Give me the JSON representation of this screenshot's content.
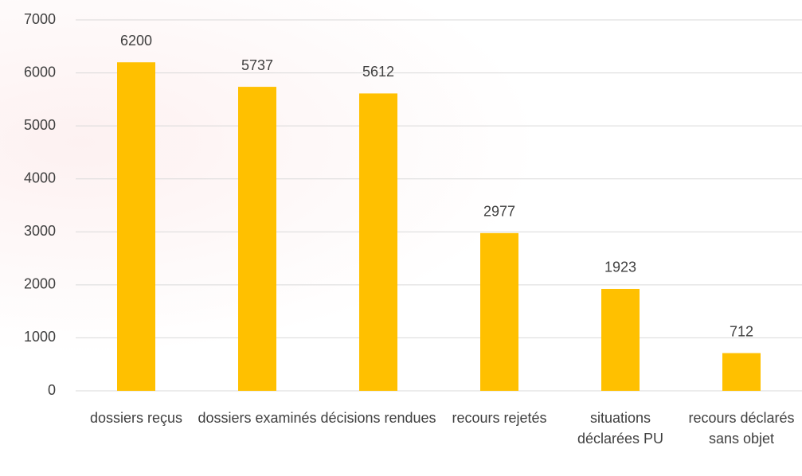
{
  "chart_data": {
    "type": "bar",
    "categories": [
      "dossiers reçus",
      "dossiers examinés",
      "décisions rendues",
      "recours rejetés",
      "situations déclarées PU",
      "recours déclarés sans objet"
    ],
    "values": [
      6200,
      5737,
      5612,
      2977,
      1923,
      712
    ],
    "color": "#FFC000",
    "ylim": [
      0,
      7000
    ],
    "yticks": [
      0,
      1000,
      2000,
      3000,
      4000,
      5000,
      6000,
      7000
    ],
    "grid": true
  }
}
